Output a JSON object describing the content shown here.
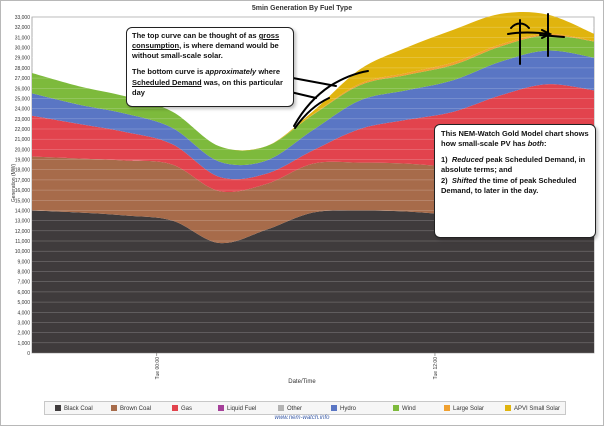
{
  "chart_data": {
    "type": "area",
    "stacked": true,
    "title": "5min Generation By Fuel Type",
    "xlabel": "Date/Time",
    "ylabel": "Generation (MW)",
    "ylim": [
      0,
      33000
    ],
    "ytick_step": 1000,
    "grid": true,
    "x_tick_labels": [
      "Tue 00:00",
      "Tue 12:00"
    ],
    "x": [
      "Tue 00:00",
      "Tue 01:30",
      "Tue 03:00",
      "Tue 04:30",
      "Tue 06:00",
      "Tue 07:30",
      "Tue 09:00",
      "Tue 10:30",
      "Tue 12:00",
      "Tue 13:30",
      "Tue 15:00",
      "Tue 16:30",
      "Tue 18:00"
    ],
    "series": [
      {
        "name": "Black Coal",
        "color": "#3f3b3c",
        "values": [
          14000,
          13800,
          13500,
          13000,
          10800,
          12100,
          13800,
          14000,
          13900,
          13600,
          13600,
          13500,
          12300
        ]
      },
      {
        "name": "Brown Coal",
        "color": "#a76b4a",
        "values": [
          5300,
          5300,
          5400,
          5500,
          5100,
          4500,
          4800,
          4700,
          4700,
          4700,
          4700,
          4700,
          4600
        ]
      },
      {
        "name": "Gas",
        "color": "#e2434d",
        "values": [
          4000,
          3400,
          2800,
          2000,
          1400,
          1000,
          1300,
          3300,
          4300,
          5400,
          7000,
          8200,
          8900
        ]
      },
      {
        "name": "Liquid Fuel",
        "color": "#a6409a",
        "values": [
          0,
          0,
          0,
          0,
          0,
          0,
          0,
          0,
          0,
          0,
          0,
          0,
          0
        ]
      },
      {
        "name": "Other",
        "color": "#b3b3b3",
        "values": [
          0,
          0,
          0,
          0,
          0,
          0,
          0,
          0,
          0,
          0,
          0,
          0,
          0
        ]
      },
      {
        "name": "Hydro",
        "color": "#5a76c4",
        "values": [
          2200,
          1900,
          1800,
          1600,
          1500,
          1300,
          2000,
          2800,
          2900,
          3100,
          3300,
          3300,
          3200
        ]
      },
      {
        "name": "Wind",
        "color": "#7dba3c",
        "values": [
          2000,
          1800,
          1700,
          1600,
          1500,
          1400,
          1500,
          1500,
          1500,
          1500,
          1500,
          1500,
          1600
        ]
      },
      {
        "name": "Large Solar",
        "color": "#f0a030",
        "values": [
          0,
          0,
          0,
          0,
          0,
          0,
          50,
          150,
          200,
          250,
          200,
          150,
          50
        ]
      },
      {
        "name": "APVI Small Solar",
        "color": "#e0b40e",
        "values": [
          0,
          0,
          0,
          0,
          0,
          0,
          300,
          1400,
          2500,
          3200,
          3000,
          1900,
          700
        ]
      }
    ]
  },
  "callouts": {
    "left_p1_a": "The top curve can be thought of as",
    "left_p1_b": "gross consumption",
    "left_p1_c": ", is where demand would be without small-scale solar.",
    "left_p2_a": "The bottom curve is",
    "left_p2_b": "approximately",
    "left_p2_c": "where",
    "left_p2_d": "Scheduled Demand",
    "left_p2_e": "was, on this particular day",
    "right_intro_a": "This NEM-Watch Gold Model chart shows how small-scale PV has",
    "right_intro_b": "both",
    "right_intro_c": ":",
    "right_i1_a": "1)",
    "right_i1_b": "Reduced",
    "right_i1_c": "peak Scheduled Demand, in absolute terms; and",
    "right_i2_a": "2)",
    "right_i2_b": "Shifted",
    "right_i2_c": "the time of peak Scheduled Demand, to later in the day."
  },
  "footer": "www.nem-watch.info"
}
